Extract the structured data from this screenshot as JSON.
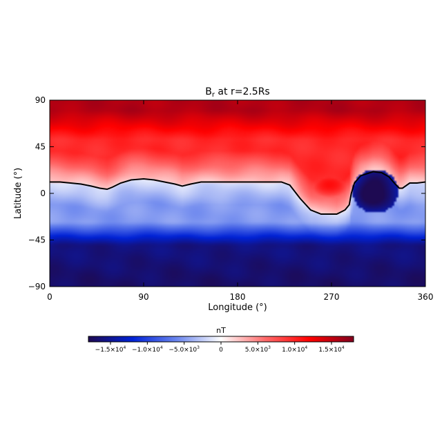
{
  "chart_data": {
    "type": "heatmap",
    "title_main": "B",
    "title_sub": "r",
    "title_rest": " at r=2.5Rs",
    "xlabel": "Longitude (°)",
    "ylabel": "Latitude (°)",
    "xlim": [
      0,
      360
    ],
    "ylim": [
      -90,
      90
    ],
    "xticks": [
      0,
      90,
      180,
      270,
      360
    ],
    "yticks": [
      90,
      45,
      0,
      -45,
      -90
    ],
    "grid": false,
    "colormap": [
      "#1e0a52",
      "#0022d6",
      "#6b86ee",
      "#ffffff",
      "#ff6b6b",
      "#ff0000",
      "#82001e"
    ],
    "colorbar": {
      "label": "nT",
      "range": [
        -18000,
        18000
      ],
      "ticks": [
        {
          "value": -15000,
          "mant": "−1.5×10",
          "exp": "4"
        },
        {
          "value": -10000,
          "mant": "−1.0×10",
          "exp": "4"
        },
        {
          "value": -5000,
          "mant": "−5.0×10",
          "exp": "3"
        },
        {
          "value": 0,
          "mant": "0",
          "exp": ""
        },
        {
          "value": 5000,
          "mant": "5.0×10",
          "exp": "3"
        },
        {
          "value": 10000,
          "mant": "1.0×10",
          "exp": "4"
        },
        {
          "value": 15000,
          "mant": "1.5×10",
          "exp": "4"
        }
      ]
    },
    "neutral_line": [
      [
        0,
        11
      ],
      [
        10,
        11
      ],
      [
        20,
        10
      ],
      [
        30,
        9
      ],
      [
        40,
        7
      ],
      [
        48,
        5
      ],
      [
        55,
        4
      ],
      [
        60,
        6
      ],
      [
        68,
        10
      ],
      [
        78,
        13
      ],
      [
        90,
        14
      ],
      [
        100,
        13
      ],
      [
        110,
        11
      ],
      [
        120,
        9
      ],
      [
        127,
        7
      ],
      [
        135,
        9
      ],
      [
        145,
        11
      ],
      [
        160,
        11
      ],
      [
        175,
        11
      ],
      [
        195,
        11
      ],
      [
        210,
        11
      ],
      [
        222,
        11
      ],
      [
        230,
        8
      ],
      [
        240,
        -5
      ],
      [
        250,
        -16
      ],
      [
        260,
        -20
      ],
      [
        275,
        -20
      ],
      [
        283,
        -16
      ],
      [
        287,
        -11
      ],
      [
        289,
        0
      ],
      [
        292,
        10
      ],
      [
        298,
        17
      ],
      [
        310,
        21
      ],
      [
        318,
        20
      ],
      [
        325,
        16
      ],
      [
        331,
        9
      ],
      [
        335,
        5
      ],
      [
        338,
        5
      ],
      [
        345,
        10
      ],
      [
        352,
        10
      ],
      [
        360,
        11
      ]
    ],
    "features": [
      {
        "name": "positive lobe",
        "lon": 268,
        "lat": 8,
        "value": 12000
      },
      {
        "name": "negative spot",
        "lon": 312,
        "lat": 2,
        "value": -19000
      }
    ]
  }
}
